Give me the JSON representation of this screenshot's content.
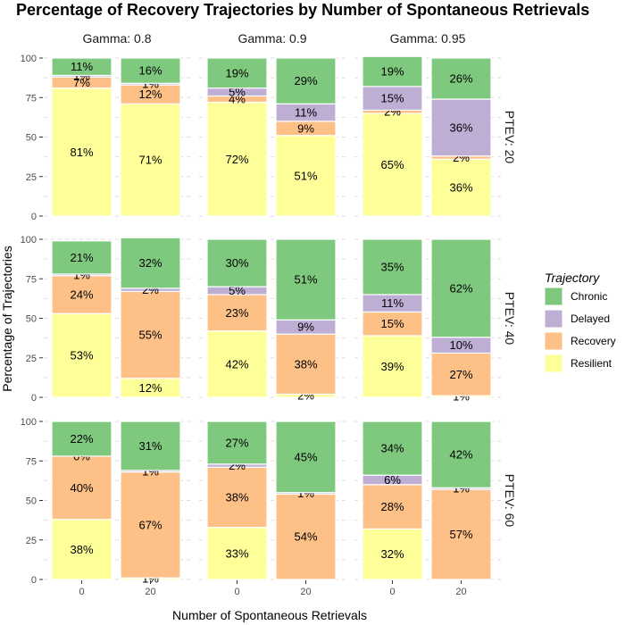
{
  "chart_data": {
    "type": "bar",
    "title": "Percentage of Recovery Trajectories by Number of Spontaneous Retrievals",
    "xlabel": "Number of Spontaneous Retrievals",
    "ylabel": "Percentage of Trajectories",
    "ylim": [
      0,
      100
    ],
    "y_ticks": [
      "0",
      "25",
      "50",
      "75",
      "100"
    ],
    "categories": [
      "0",
      "20"
    ],
    "column_facets": [
      "Gamma: 0.8",
      "Gamma: 0.9",
      "Gamma: 0.95"
    ],
    "row_facets": [
      "PTEV: 20",
      "PTEV: 40",
      "PTEV: 60"
    ],
    "legend": {
      "title": "Trajectory",
      "position": "right",
      "items": [
        {
          "name": "Chronic",
          "color": "#7fc97f"
        },
        {
          "name": "Delayed",
          "color": "#beaed4"
        },
        {
          "name": "Recovery",
          "color": "#fdc086"
        },
        {
          "name": "Resilient",
          "color": "#ffff99"
        }
      ]
    },
    "stack_order_bottom_to_top": [
      "Resilient",
      "Recovery",
      "Delayed",
      "Chronic"
    ],
    "panels": [
      [
        [
          {
            "Resilient": 81,
            "Recovery": 7,
            "Delayed": 1,
            "Chronic": 11
          },
          {
            "Resilient": 71,
            "Recovery": 12,
            "Delayed": 1,
            "Chronic": 16
          }
        ],
        [
          {
            "Resilient": 72,
            "Recovery": 4,
            "Delayed": 5,
            "Chronic": 19
          },
          {
            "Resilient": 51,
            "Recovery": 9,
            "Delayed": 11,
            "Chronic": 29
          }
        ],
        [
          {
            "Resilient": 65,
            "Recovery": 2,
            "Delayed": 15,
            "Chronic": 19
          },
          {
            "Resilient": 36,
            "Recovery": 2,
            "Delayed": 36,
            "Chronic": 26
          }
        ]
      ],
      [
        [
          {
            "Resilient": 53,
            "Recovery": 24,
            "Delayed": 1,
            "Chronic": 21
          },
          {
            "Resilient": 12,
            "Recovery": 55,
            "Delayed": 2,
            "Chronic": 32
          }
        ],
        [
          {
            "Resilient": 42,
            "Recovery": 23,
            "Delayed": 5,
            "Chronic": 30
          },
          {
            "Resilient": 2,
            "Recovery": 38,
            "Delayed": 9,
            "Chronic": 51
          }
        ],
        [
          {
            "Resilient": 39,
            "Recovery": 15,
            "Delayed": 11,
            "Chronic": 35
          },
          {
            "Resilient": 1,
            "Recovery": 27,
            "Delayed": 10,
            "Chronic": 62
          }
        ]
      ],
      [
        [
          {
            "Resilient": 38,
            "Recovery": 40,
            "Delayed": 0,
            "Chronic": 22
          },
          {
            "Resilient": 1,
            "Recovery": 67,
            "Delayed": 1,
            "Chronic": 31
          }
        ],
        [
          {
            "Resilient": 33,
            "Recovery": 38,
            "Delayed": 2,
            "Chronic": 27
          },
          {
            "Recovery": 54,
            "Delayed": 1,
            "Chronic": 45
          }
        ],
        [
          {
            "Resilient": 32,
            "Recovery": 28,
            "Delayed": 6,
            "Chronic": 34
          },
          {
            "Recovery": 57,
            "Delayed": 1,
            "Chronic": 42
          }
        ]
      ]
    ]
  }
}
